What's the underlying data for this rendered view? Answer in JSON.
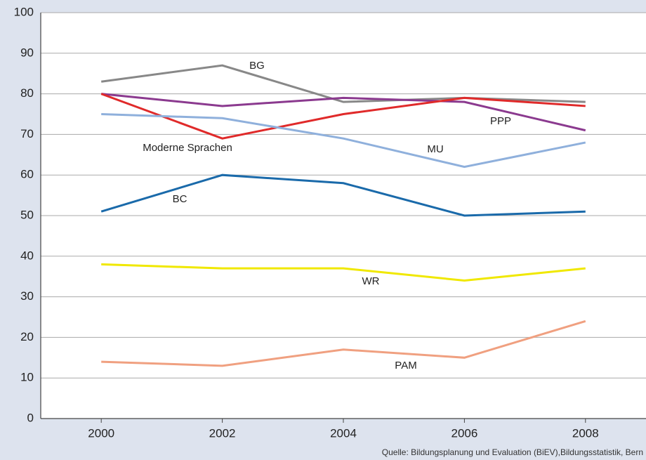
{
  "chart_data": {
    "type": "line",
    "source": "Quelle: Bildungsplanung und Evaluation (BiEV),Bildungsstatistik, Bern",
    "x": [
      2000,
      2002,
      2004,
      2006,
      2008
    ],
    "xlim": [
      1999,
      2009
    ],
    "xticks": [
      2000,
      2002,
      2004,
      2006,
      2008
    ],
    "ylim": [
      0,
      100
    ],
    "yticks": [
      0,
      10,
      20,
      30,
      40,
      50,
      60,
      70,
      80,
      90,
      100
    ],
    "grid": true,
    "series": [
      {
        "name": "BG",
        "color": "#888888",
        "values": [
          83,
          87,
          78,
          79,
          78
        ]
      },
      {
        "name": "PPP",
        "color": "#8b3a8f",
        "values": [
          80,
          77,
          79,
          78,
          71
        ]
      },
      {
        "name": "Moderne Sprachen",
        "color": "#e02a2a",
        "values": [
          80,
          69,
          75,
          79,
          77
        ]
      },
      {
        "name": "MU",
        "color": "#8fb0dc",
        "values": [
          75,
          74,
          69,
          62,
          68
        ]
      },
      {
        "name": "BC",
        "color": "#1a6aaa",
        "values": [
          51,
          60,
          58,
          50,
          51
        ]
      },
      {
        "name": "WR",
        "color": "#f0e800",
        "values": [
          38,
          37,
          37,
          34,
          37
        ]
      },
      {
        "name": "PAM",
        "color": "#f0a080",
        "values": [
          14,
          13,
          17,
          15,
          24
        ]
      }
    ]
  }
}
